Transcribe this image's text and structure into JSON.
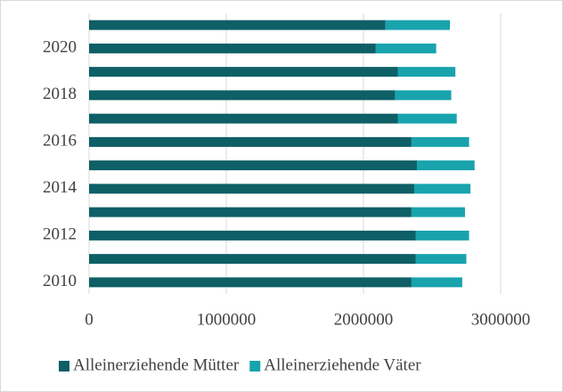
{
  "chart_data": {
    "type": "stacked-barh",
    "categories": [
      "2010",
      null,
      "2012",
      null,
      "2014",
      null,
      "2016",
      null,
      "2018",
      null,
      "2020",
      null
    ],
    "series": [
      {
        "name": "Alleinerziehende Mütter",
        "color": "#0e5f66",
        "values": [
          2350000,
          2380000,
          2380000,
          2350000,
          2370000,
          2390000,
          2350000,
          2250000,
          2230000,
          2250000,
          2090000,
          2160000
        ]
      },
      {
        "name": "Alleinerziehende Väter",
        "color": "#18a3ad",
        "values": [
          370000,
          370000,
          390000,
          390000,
          410000,
          420000,
          420000,
          430000,
          410000,
          420000,
          440000,
          470000
        ]
      }
    ],
    "xlim": [
      0,
      3000000
    ],
    "xticks": [
      0,
      1000000,
      2000000,
      3000000
    ],
    "grid": true,
    "legend": "bottom"
  }
}
